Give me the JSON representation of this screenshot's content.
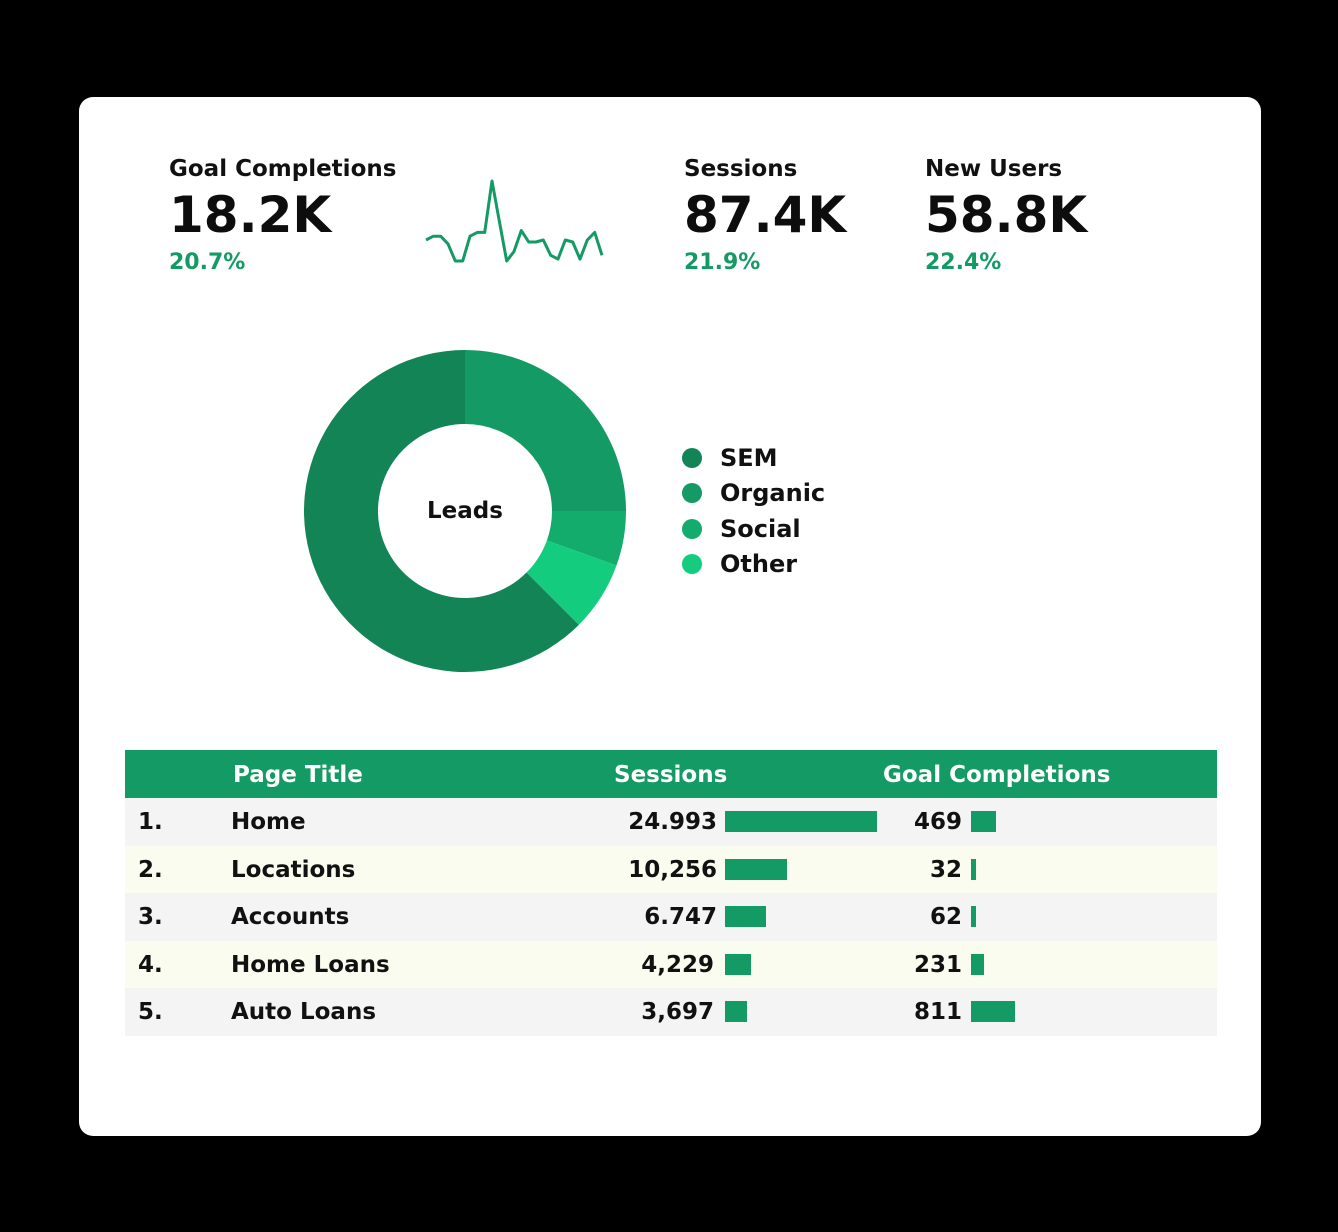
{
  "colors": {
    "accent": "#149a64",
    "positive_text": "#149a64",
    "sem": "#128455",
    "organic": "#149a64",
    "social": "#13ac6c",
    "other": "#14cc7d",
    "bar": "#149a64"
  },
  "kpis": [
    {
      "label": "Goal Completions",
      "value": "18.2K",
      "change": "20.7%"
    },
    {
      "label": "Sessions",
      "value": "87.4K",
      "change": "21.9%"
    },
    {
      "label": "New Users",
      "value": "58.8K",
      "change": "22.4%"
    }
  ],
  "donut_center_label": "Leads",
  "chart_data": [
    {
      "type": "line",
      "x": [
        1,
        2,
        3,
        4,
        5,
        6,
        7,
        8,
        9,
        10,
        11,
        12,
        13,
        14,
        15,
        16,
        17,
        18,
        19,
        20,
        21,
        22,
        23,
        24,
        25
      ],
      "values": [
        12,
        14,
        14,
        10,
        1,
        1,
        14,
        16,
        16,
        43,
        22,
        1,
        6,
        17,
        11,
        11,
        12,
        4,
        2,
        12,
        11,
        2,
        12,
        16,
        4
      ],
      "title": "",
      "xlabel": "",
      "ylabel": "",
      "grid": false
    },
    {
      "type": "pie",
      "labels": [
        "SEM",
        "Organic",
        "Social",
        "Other"
      ],
      "values": [
        62.5,
        25,
        5.5,
        7
      ],
      "center_label": "Leads",
      "legend_position": "right",
      "title": ""
    },
    {
      "type": "table",
      "columns": [
        "Page Title",
        "Sessions",
        "Goal Completions"
      ],
      "rows": [
        {
          "rank": "1.",
          "page_title": "Home",
          "sessions": "24.993",
          "sessions_value": 24993,
          "goal_completions": "469",
          "goal_value": 469
        },
        {
          "rank": "2.",
          "page_title": "Locations",
          "sessions": "10,256",
          "sessions_value": 10256,
          "goal_completions": "32",
          "goal_value": 32
        },
        {
          "rank": "3.",
          "page_title": "Accounts",
          "sessions": "6.747",
          "sessions_value": 6747,
          "goal_completions": "62",
          "goal_value": 62
        },
        {
          "rank": "4.",
          "page_title": "Home Loans",
          "sessions": "4,229",
          "sessions_value": 4229,
          "goal_completions": "231",
          "goal_value": 231
        },
        {
          "rank": "5.",
          "page_title": "Auto Loans",
          "sessions": "3,697",
          "sessions_value": 3697,
          "goal_completions": "811",
          "goal_value": 811
        }
      ]
    }
  ]
}
